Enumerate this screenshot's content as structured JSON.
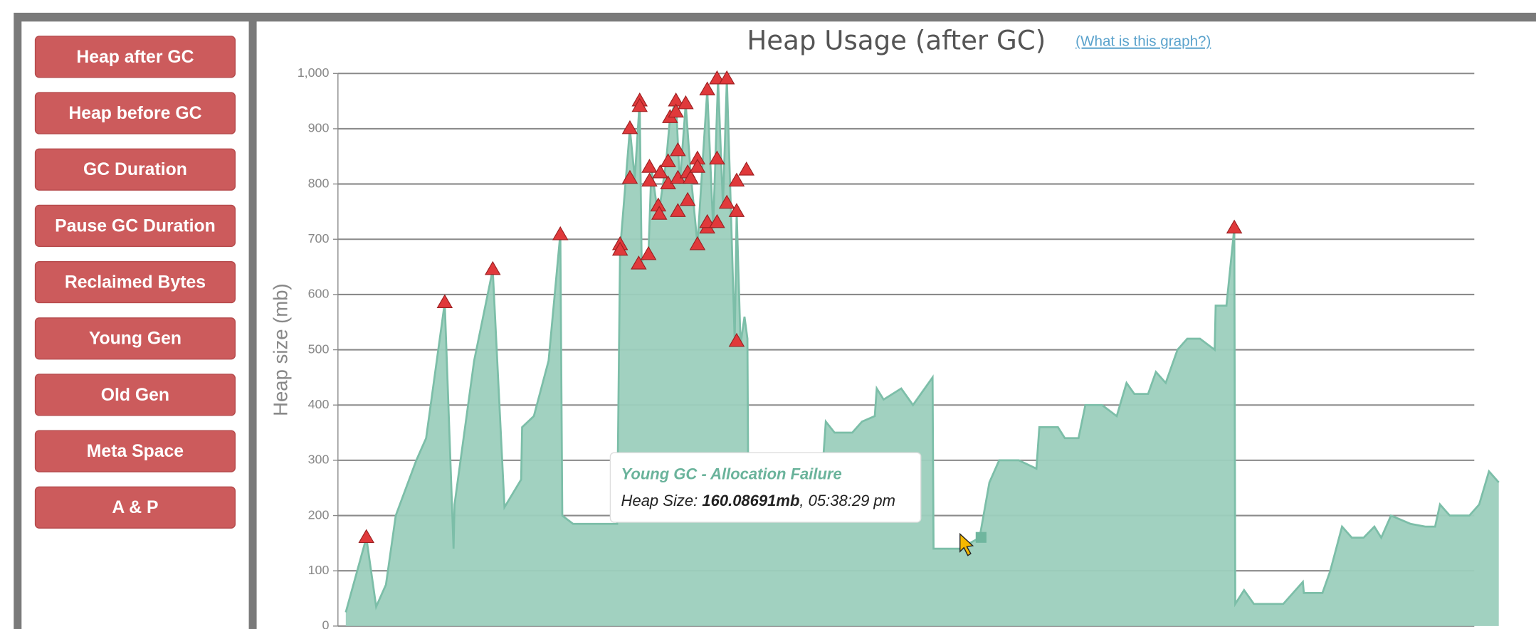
{
  "sidebar": {
    "buttons": [
      "Heap after GC",
      "Heap before GC",
      "GC Duration",
      "Pause GC Duration",
      "Reclaimed Bytes",
      "Young Gen",
      "Old Gen",
      "Meta Space",
      "A & P"
    ]
  },
  "chart_data": {
    "type": "area",
    "title": "Heap Usage (after GC)",
    "link": "(What is this graph?)",
    "y_label": "Heap size (mb)",
    "ylim": [
      0,
      1000
    ],
    "yticks": [
      0,
      100,
      200,
      300,
      400,
      500,
      600,
      700,
      800,
      900,
      {
        "value": 1000,
        "label": "1,000"
      }
    ],
    "xlim": [
      0,
      1190
    ],
    "grid": true,
    "x": [
      8,
      29,
      39,
      49,
      59,
      80,
      90,
      109,
      118,
      119,
      139,
      158,
      170,
      187,
      188,
      200,
      215,
      227,
      229,
      240,
      285,
      288,
      298,
      303,
      308,
      310,
      317,
      320,
      327,
      335,
      339,
      345,
      349,
      355,
      360,
      367,
      373,
      377,
      383,
      388,
      393,
      397,
      401,
      405,
      407,
      411,
      415,
      418,
      419,
      445,
      491,
      498,
      507,
      525,
      535,
      548,
      550,
      557,
      575,
      587,
      607,
      608,
      635,
      655,
      665,
      675,
      695,
      713,
      716,
      735,
      742,
      756,
      763,
      780,
      795,
      805,
      813,
      827,
      835,
      845,
      857,
      867,
      880,
      895,
      896,
      907,
      915,
      916,
      925,
      935,
      965,
      985,
      986,
      1005,
      1013,
      1025,
      1035,
      1047,
      1058,
      1065,
      1075,
      1095,
      1110,
      1120,
      1125,
      1135,
      1155,
      1165,
      1175,
      1185
    ],
    "values": [
      25,
      160,
      35,
      75,
      200,
      300,
      340,
      585,
      140,
      220,
      480,
      645,
      215,
      265,
      360,
      380,
      480,
      710,
      200,
      185,
      185,
      680,
      900,
      810,
      950,
      660,
      675,
      830,
      740,
      840,
      920,
      950,
      800,
      945,
      820,
      690,
      860,
      970,
      720,
      990,
      760,
      990,
      760,
      515,
      750,
      510,
      560,
      520,
      190,
      190,
      190,
      370,
      350,
      350,
      370,
      380,
      430,
      410,
      430,
      400,
      450,
      140,
      140,
      160,
      260,
      300,
      300,
      285,
      360,
      360,
      340,
      340,
      400,
      400,
      380,
      440,
      420,
      420,
      460,
      440,
      500,
      520,
      520,
      500,
      580,
      580,
      720,
      40,
      65,
      40,
      40,
      80,
      60,
      60,
      100,
      180,
      160,
      160,
      180,
      160,
      200,
      185,
      180,
      180,
      220,
      200,
      200,
      220,
      280,
      260
    ],
    "color": "#9ccfbd",
    "line_color": "#7cbea8",
    "markers": {
      "x": [
        29,
        109,
        158,
        227,
        288,
        288,
        298,
        298,
        308,
        308,
        307,
        317,
        318,
        318,
        327,
        328,
        329,
        337,
        339,
        337,
        345,
        345,
        347,
        347,
        347,
        355,
        357,
        357,
        360,
        367,
        367,
        367,
        377,
        377,
        377,
        387,
        387,
        387,
        397,
        397,
        407,
        407,
        407,
        417,
        915
      ],
      "values": [
        160,
        585,
        645,
        708,
        690,
        680,
        900,
        810,
        950,
        940,
        655,
        672,
        830,
        805,
        760,
        745,
        820,
        840,
        920,
        800,
        950,
        930,
        810,
        860,
        750,
        945,
        770,
        820,
        810,
        690,
        845,
        830,
        970,
        720,
        730,
        990,
        845,
        730,
        990,
        765,
        805,
        750,
        515,
        825,
        720
      ],
      "color": "#e0393b"
    },
    "tooltip": {
      "title": "Young GC - Allocation Failure",
      "label": "Heap Size:",
      "value": "160.08691mb",
      "suffix": ", 05:38:29 pm"
    }
  }
}
